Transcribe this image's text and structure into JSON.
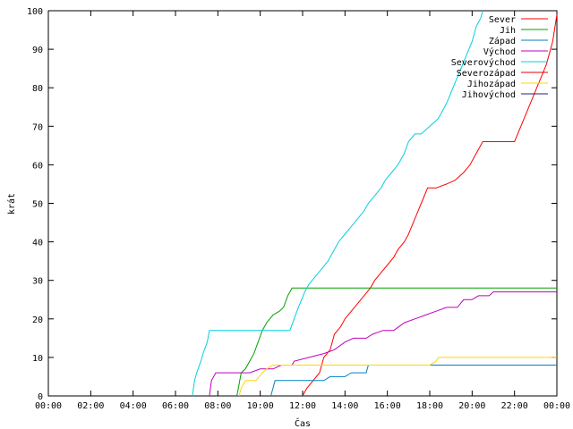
{
  "chart_data": {
    "type": "line",
    "xlabel": "Čas",
    "ylabel": "krát",
    "xlim": [
      0,
      24
    ],
    "ylim": [
      0,
      100
    ],
    "grid": false,
    "legend_position": "top-right",
    "x_ticks": [
      {
        "value": 0,
        "label": "00:00"
      },
      {
        "value": 2,
        "label": "02:00"
      },
      {
        "value": 4,
        "label": "04:00"
      },
      {
        "value": 6,
        "label": "06:00"
      },
      {
        "value": 8,
        "label": "08:00"
      },
      {
        "value": 10,
        "label": "10:00"
      },
      {
        "value": 12,
        "label": "12:00"
      },
      {
        "value": 14,
        "label": "14:00"
      },
      {
        "value": 16,
        "label": "16:00"
      },
      {
        "value": 18,
        "label": "18:00"
      },
      {
        "value": 20,
        "label": "20:00"
      },
      {
        "value": 22,
        "label": "22:00"
      },
      {
        "value": 24,
        "label": "00:00"
      }
    ],
    "y_ticks": [
      0,
      10,
      20,
      30,
      40,
      50,
      60,
      70,
      80,
      90,
      100
    ],
    "series": [
      {
        "name": "Sever",
        "color": "#ff0000",
        "points": [
          [
            12.0,
            0
          ],
          [
            12.2,
            2
          ],
          [
            12.5,
            4
          ],
          [
            12.8,
            6
          ],
          [
            13.0,
            10
          ],
          [
            13.3,
            12
          ],
          [
            13.5,
            16
          ],
          [
            13.8,
            18
          ],
          [
            14.0,
            20
          ],
          [
            14.3,
            22
          ],
          [
            14.6,
            24
          ],
          [
            14.9,
            26
          ],
          [
            15.2,
            28
          ],
          [
            15.4,
            30
          ],
          [
            15.7,
            32
          ],
          [
            16.0,
            34
          ],
          [
            16.3,
            36
          ],
          [
            16.5,
            38
          ],
          [
            16.8,
            40
          ],
          [
            17.0,
            42
          ],
          [
            17.3,
            46
          ],
          [
            17.6,
            50
          ],
          [
            17.9,
            54
          ],
          [
            18.3,
            54
          ],
          [
            18.8,
            55
          ],
          [
            19.2,
            56
          ],
          [
            19.6,
            58
          ],
          [
            19.9,
            60
          ],
          [
            20.1,
            62
          ],
          [
            20.3,
            64
          ],
          [
            20.5,
            66
          ],
          [
            21.0,
            66
          ],
          [
            21.5,
            66
          ],
          [
            22.0,
            66
          ],
          [
            22.3,
            70
          ],
          [
            22.6,
            74
          ],
          [
            22.9,
            78
          ],
          [
            23.2,
            82
          ],
          [
            23.5,
            86
          ],
          [
            23.8,
            92
          ],
          [
            24.0,
            99
          ]
        ]
      },
      {
        "name": "Jih",
        "color": "#00a000",
        "points": [
          [
            8.9,
            0
          ],
          [
            9.1,
            6
          ],
          [
            9.3,
            7
          ],
          [
            9.5,
            9
          ],
          [
            9.7,
            11
          ],
          [
            9.9,
            14
          ],
          [
            10.1,
            17
          ],
          [
            10.3,
            19
          ],
          [
            10.6,
            21
          ],
          [
            10.9,
            22
          ],
          [
            11.1,
            23
          ],
          [
            11.3,
            26
          ],
          [
            11.5,
            28
          ],
          [
            12.0,
            28
          ],
          [
            16.0,
            28
          ],
          [
            20.0,
            28
          ],
          [
            24.0,
            28
          ]
        ]
      },
      {
        "name": "Západ",
        "color": "#0080c0",
        "points": [
          [
            10.5,
            0
          ],
          [
            10.6,
            2
          ],
          [
            10.7,
            4
          ],
          [
            12.0,
            4
          ],
          [
            13.0,
            4
          ],
          [
            13.3,
            5
          ],
          [
            14.0,
            5
          ],
          [
            14.3,
            6
          ],
          [
            15.0,
            6
          ],
          [
            15.1,
            8
          ],
          [
            16.0,
            8
          ],
          [
            20.0,
            8
          ],
          [
            24.0,
            8
          ]
        ]
      },
      {
        "name": "Východ",
        "color": "#c000c0",
        "points": [
          [
            7.6,
            0
          ],
          [
            7.7,
            4
          ],
          [
            7.9,
            6
          ],
          [
            8.5,
            6
          ],
          [
            9.5,
            6
          ],
          [
            10.0,
            7
          ],
          [
            10.6,
            7
          ],
          [
            11.0,
            8
          ],
          [
            11.5,
            8
          ],
          [
            11.6,
            9
          ],
          [
            12.3,
            10
          ],
          [
            13.0,
            11
          ],
          [
            13.5,
            12
          ],
          [
            14.0,
            14
          ],
          [
            14.4,
            15
          ],
          [
            15.0,
            15
          ],
          [
            15.3,
            16
          ],
          [
            15.8,
            17
          ],
          [
            16.3,
            17
          ],
          [
            16.8,
            19
          ],
          [
            17.3,
            20
          ],
          [
            17.8,
            21
          ],
          [
            18.3,
            22
          ],
          [
            18.8,
            23
          ],
          [
            19.3,
            23
          ],
          [
            19.6,
            25
          ],
          [
            20.0,
            25
          ],
          [
            20.3,
            26
          ],
          [
            20.8,
            26
          ],
          [
            21.0,
            27
          ],
          [
            24.0,
            27
          ]
        ]
      },
      {
        "name": "Severovýchod",
        "color": "#00d0e0",
        "points": [
          [
            6.8,
            0
          ],
          [
            6.9,
            4
          ],
          [
            7.0,
            6
          ],
          [
            7.2,
            9
          ],
          [
            7.3,
            11
          ],
          [
            7.5,
            14
          ],
          [
            7.6,
            17
          ],
          [
            8.5,
            17
          ],
          [
            10.0,
            17
          ],
          [
            10.5,
            17
          ],
          [
            11.4,
            17
          ],
          [
            11.6,
            20
          ],
          [
            11.8,
            23
          ],
          [
            12.1,
            27
          ],
          [
            12.3,
            29
          ],
          [
            12.6,
            31
          ],
          [
            12.9,
            33
          ],
          [
            13.2,
            35
          ],
          [
            13.4,
            37
          ],
          [
            13.7,
            40
          ],
          [
            14.0,
            42
          ],
          [
            14.3,
            44
          ],
          [
            14.6,
            46
          ],
          [
            14.9,
            48
          ],
          [
            15.1,
            50
          ],
          [
            15.4,
            52
          ],
          [
            15.7,
            54
          ],
          [
            15.9,
            56
          ],
          [
            16.2,
            58
          ],
          [
            16.5,
            60
          ],
          [
            16.8,
            63
          ],
          [
            17.0,
            66
          ],
          [
            17.3,
            68
          ],
          [
            17.6,
            68
          ],
          [
            18.0,
            70
          ],
          [
            18.4,
            72
          ],
          [
            18.8,
            76
          ],
          [
            19.1,
            80
          ],
          [
            19.4,
            84
          ],
          [
            19.7,
            88
          ],
          [
            20.0,
            92
          ],
          [
            20.2,
            96
          ],
          [
            20.4,
            98
          ],
          [
            20.5,
            100
          ]
        ]
      },
      {
        "name": "Severozápad",
        "color": "#e00000",
        "points": []
      },
      {
        "name": "Jihozápad",
        "color": "#ffd700",
        "points": [
          [
            9.0,
            0
          ],
          [
            9.1,
            2
          ],
          [
            9.3,
            4
          ],
          [
            9.8,
            4
          ],
          [
            10.1,
            6
          ],
          [
            10.3,
            7
          ],
          [
            10.6,
            8
          ],
          [
            11.0,
            8
          ],
          [
            14.0,
            8
          ],
          [
            16.0,
            8
          ],
          [
            18.0,
            8
          ],
          [
            18.3,
            9
          ],
          [
            18.4,
            10
          ],
          [
            20.0,
            10
          ],
          [
            24.0,
            10
          ]
        ]
      },
      {
        "name": "Jihovýchod",
        "color": "#202080",
        "points": []
      }
    ]
  }
}
